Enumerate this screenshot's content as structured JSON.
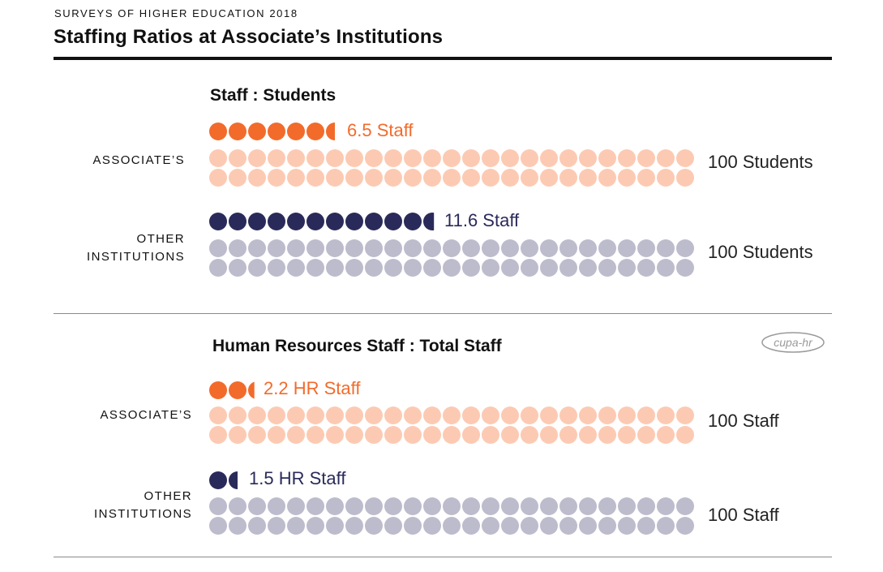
{
  "header": {
    "supertitle": "SURVEYS OF HIGHER EDUCATION 2018",
    "title": "Staffing Ratios at Associate’s Institutions"
  },
  "logo": {
    "text": "cupa-hr"
  },
  "colors": {
    "associates_dark": "#f26b2b",
    "associates_light": "#fccab3",
    "other_dark": "#2a2a5a",
    "other_light": "#bdbccd"
  },
  "chart_data": [
    {
      "type": "pictograph",
      "title": "Staff : Students",
      "rows": [
        {
          "group": "ASSOCIATE’S",
          "count": 6.5,
          "count_label": "6.5 Staff",
          "total": 100,
          "total_label": "100 Students"
        },
        {
          "group": "OTHER INSTITUTIONS",
          "group_lines": [
            "OTHER",
            "INSTITUTIONS"
          ],
          "count": 11.6,
          "count_label": "11.6 Staff",
          "total": 100,
          "total_label": "100 Students"
        }
      ]
    },
    {
      "type": "pictograph",
      "title": "Human Resources Staff : Total Staff",
      "rows": [
        {
          "group": "ASSOCIATE’S",
          "count": 2.2,
          "count_label": "2.2 HR Staff",
          "total": 100,
          "total_label": "100 Staff"
        },
        {
          "group": "OTHER INSTITUTIONS",
          "group_lines": [
            "OTHER",
            "INSTITUTIONS"
          ],
          "count": 1.5,
          "count_label": "1.5 HR Staff",
          "total": 100,
          "total_label": "100 Staff"
        }
      ]
    }
  ]
}
